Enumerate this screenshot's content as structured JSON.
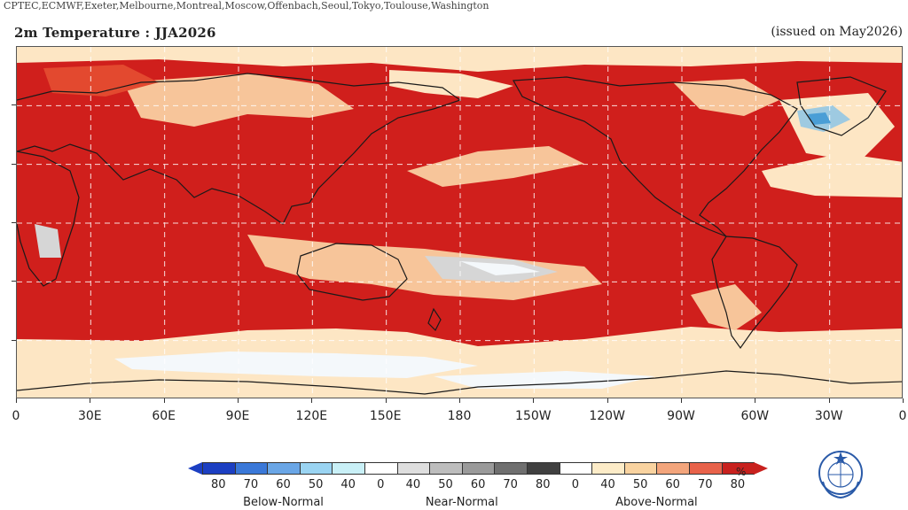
{
  "header": {
    "centers": "CPTEC,ECMWF,Exeter,Melbourne,Montreal,Moscow,Offenbach,Seoul,Tokyo,Toulouse,Washington",
    "title": "2m Temperature : JJA2026",
    "issued": "(issued on May2026)"
  },
  "map": {
    "x_ticks": [
      "0",
      "30E",
      "60E",
      "90E",
      "120E",
      "150E",
      "180",
      "150W",
      "120W",
      "90W",
      "60W",
      "30W",
      "0"
    ],
    "colors": {
      "strong_warm": "#d01f1c",
      "warm": "#e3492f",
      "moderate_warm": "#f0876a",
      "weak_warm": "#f7c59a",
      "slight_warm": "#fde6c4",
      "near_normal": "#d6d6d6",
      "cool": "#f4f8fb",
      "below_weak": "#9ecae1",
      "below_mid": "#4a9ed6",
      "land_outline": "#1a1a1a",
      "grid": "#ffffff"
    }
  },
  "legend": {
    "unit": "%",
    "cells": [
      {
        "color": "#1c3fc2"
      },
      {
        "color": "#3a78d8"
      },
      {
        "color": "#6aa6e6"
      },
      {
        "color": "#9ad4f2"
      },
      {
        "color": "#c9f0f7"
      },
      {
        "color": "#ffffff"
      },
      {
        "color": "#dedede"
      },
      {
        "color": "#bdbdbd"
      },
      {
        "color": "#9a9a9a"
      },
      {
        "color": "#6f6f6f"
      },
      {
        "color": "#404040"
      },
      {
        "color": "#ffffff"
      },
      {
        "color": "#fdecc8"
      },
      {
        "color": "#f9d3a0"
      },
      {
        "color": "#f3a57c"
      },
      {
        "color": "#e8624a"
      },
      {
        "color": "#c8211e"
      }
    ],
    "tick_labels": [
      "80",
      "70",
      "60",
      "50",
      "40",
      "0",
      "40",
      "50",
      "60",
      "70",
      "80",
      "0",
      "40",
      "50",
      "60",
      "70",
      "80"
    ],
    "group_labels": [
      "Below-Normal",
      "Near-Normal",
      "Above-Normal"
    ]
  }
}
